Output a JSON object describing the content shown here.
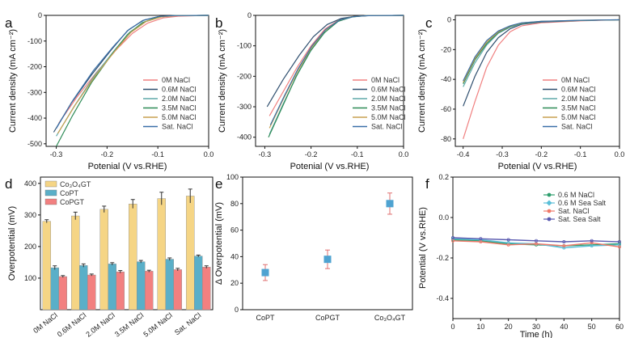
{
  "chart_data": [
    {
      "panel": "a",
      "type": "line",
      "xlabel": "Potenial (V vs.RHE)",
      "ylabel": "Current density (mA cm⁻²)",
      "xlim": [
        -0.32,
        0.0
      ],
      "ylim": [
        -510,
        0
      ],
      "xticks": [
        "-0.3",
        "-0.2",
        "-0.1",
        "0.0"
      ],
      "yticks": [
        "0",
        "-100",
        "-200",
        "-300",
        "-400",
        "-500"
      ],
      "series": [
        {
          "name": "0M NaCl",
          "color": "#f08080",
          "points": [
            [
              -0.295,
              -420
            ],
            [
              -0.26,
              -320
            ],
            [
              -0.22,
              -220
            ],
            [
              -0.18,
              -130
            ],
            [
              -0.15,
              -70
            ],
            [
              -0.12,
              -30
            ],
            [
              -0.09,
              -10
            ],
            [
              -0.06,
              -3
            ],
            [
              0,
              0
            ]
          ]
        },
        {
          "name": "0.6M NaCl",
          "color": "#2f4f6f",
          "points": [
            [
              -0.305,
              -455
            ],
            [
              -0.27,
              -340
            ],
            [
              -0.23,
              -230
            ],
            [
              -0.19,
              -130
            ],
            [
              -0.16,
              -60
            ],
            [
              -0.13,
              -20
            ],
            [
              -0.1,
              -5
            ],
            [
              -0.07,
              -1
            ],
            [
              0,
              0
            ]
          ]
        },
        {
          "name": "2.0M NaCl",
          "color": "#5ea8a8",
          "points": [
            [
              -0.3,
              -470
            ],
            [
              -0.265,
              -355
            ],
            [
              -0.225,
              -235
            ],
            [
              -0.185,
              -135
            ],
            [
              -0.155,
              -65
            ],
            [
              -0.125,
              -25
            ],
            [
              -0.095,
              -6
            ],
            [
              -0.065,
              -1
            ],
            [
              0,
              0
            ]
          ]
        },
        {
          "name": "3.5M NaCl",
          "color": "#2e8b57",
          "points": [
            [
              -0.3,
              -510
            ],
            [
              -0.268,
              -390
            ],
            [
              -0.23,
              -260
            ],
            [
              -0.19,
              -150
            ],
            [
              -0.16,
              -75
            ],
            [
              -0.13,
              -28
            ],
            [
              -0.1,
              -7
            ],
            [
              -0.07,
              -1
            ],
            [
              0,
              0
            ]
          ]
        },
        {
          "name": "5.0M NaCl",
          "color": "#c8a050",
          "points": [
            [
              -0.297,
              -460
            ],
            [
              -0.263,
              -350
            ],
            [
              -0.223,
              -235
            ],
            [
              -0.183,
              -135
            ],
            [
              -0.153,
              -66
            ],
            [
              -0.123,
              -24
            ],
            [
              -0.093,
              -6
            ],
            [
              -0.063,
              -1
            ],
            [
              0,
              0
            ]
          ]
        },
        {
          "name": "Sat. NaCl",
          "color": "#3a6fa8",
          "points": [
            [
              -0.3,
              -440
            ],
            [
              -0.267,
              -330
            ],
            [
              -0.227,
              -215
            ],
            [
              -0.187,
              -120
            ],
            [
              -0.157,
              -55
            ],
            [
              -0.127,
              -18
            ],
            [
              -0.097,
              -4
            ],
            [
              -0.067,
              -1
            ],
            [
              0,
              0
            ]
          ]
        }
      ]
    },
    {
      "panel": "b",
      "type": "line",
      "xlabel": "Potenial (V vs.RHE)",
      "ylabel": "Current density (mA cm⁻²)",
      "xlim": [
        -0.32,
        0.0
      ],
      "ylim": [
        -430,
        0
      ],
      "xticks": [
        "-0.3",
        "-0.2",
        "-0.1",
        "0.0"
      ],
      "yticks": [
        "0",
        "-100",
        "-200",
        "-300",
        "-400"
      ],
      "series": [
        {
          "name": "0M NaCl",
          "color": "#f08080",
          "points": [
            [
              -0.29,
              -330
            ],
            [
              -0.26,
              -250
            ],
            [
              -0.23,
              -170
            ],
            [
              -0.2,
              -100
            ],
            [
              -0.17,
              -45
            ],
            [
              -0.14,
              -15
            ],
            [
              -0.11,
              -4
            ],
            [
              -0.08,
              -1
            ],
            [
              0,
              0
            ]
          ]
        },
        {
          "name": "0.6M NaCl",
          "color": "#2f4f6f",
          "points": [
            [
              -0.295,
              -300
            ],
            [
              -0.26,
              -210
            ],
            [
              -0.225,
              -130
            ],
            [
              -0.195,
              -70
            ],
            [
              -0.165,
              -30
            ],
            [
              -0.135,
              -10
            ],
            [
              -0.105,
              -3
            ],
            [
              -0.075,
              -1
            ],
            [
              0,
              0
            ]
          ]
        },
        {
          "name": "2.0M NaCl",
          "color": "#5ea8a8",
          "points": [
            [
              -0.29,
              -390
            ],
            [
              -0.26,
              -290
            ],
            [
              -0.23,
              -195
            ],
            [
              -0.2,
              -115
            ],
            [
              -0.17,
              -55
            ],
            [
              -0.14,
              -18
            ],
            [
              -0.11,
              -5
            ],
            [
              -0.08,
              -1
            ],
            [
              0,
              0
            ]
          ]
        },
        {
          "name": "3.5M NaCl",
          "color": "#2e8b57",
          "points": [
            [
              -0.292,
              -400
            ],
            [
              -0.262,
              -300
            ],
            [
              -0.232,
              -200
            ],
            [
              -0.202,
              -118
            ],
            [
              -0.172,
              -58
            ],
            [
              -0.142,
              -20
            ],
            [
              -0.112,
              -5
            ],
            [
              -0.082,
              -1
            ],
            [
              0,
              0
            ]
          ]
        },
        {
          "name": "5.0M NaCl",
          "color": "#c8a050",
          "points": [
            [
              -0.29,
              -370
            ],
            [
              -0.26,
              -275
            ],
            [
              -0.23,
              -185
            ],
            [
              -0.2,
              -108
            ],
            [
              -0.17,
              -50
            ],
            [
              -0.14,
              -16
            ],
            [
              -0.11,
              -4
            ],
            [
              -0.08,
              -1
            ],
            [
              0,
              0
            ]
          ]
        },
        {
          "name": "Sat. NaCl",
          "color": "#3a6fa8",
          "points": [
            [
              -0.288,
              -360
            ],
            [
              -0.258,
              -265
            ],
            [
              -0.228,
              -175
            ],
            [
              -0.198,
              -100
            ],
            [
              -0.168,
              -46
            ],
            [
              -0.138,
              -15
            ],
            [
              -0.108,
              -4
            ],
            [
              -0.078,
              -1
            ],
            [
              0,
              0
            ]
          ]
        }
      ]
    },
    {
      "panel": "c",
      "type": "line",
      "xlabel": "Potenial (V vs.RHE)",
      "ylabel": "Current density (mA cm⁻²)",
      "xlim": [
        -0.42,
        0.0
      ],
      "ylim": [
        -85,
        3
      ],
      "xticks": [
        "-0.4",
        "-0.3",
        "-0.2",
        "-0.1",
        "0.0"
      ],
      "yticks": [
        "0",
        "-20",
        "-40",
        "-60",
        "-80"
      ],
      "series": [
        {
          "name": "0M NaCl",
          "color": "#f08080",
          "points": [
            [
              -0.4,
              -80
            ],
            [
              -0.37,
              -55
            ],
            [
              -0.34,
              -32
            ],
            [
              -0.31,
              -17
            ],
            [
              -0.28,
              -8
            ],
            [
              -0.25,
              -4
            ],
            [
              -0.2,
              -2
            ],
            [
              -0.1,
              -0.7
            ],
            [
              0,
              0
            ]
          ]
        },
        {
          "name": "0.6M NaCl",
          "color": "#2f4f6f",
          "points": [
            [
              -0.4,
              -58
            ],
            [
              -0.37,
              -38
            ],
            [
              -0.34,
              -22
            ],
            [
              -0.31,
              -12
            ],
            [
              -0.28,
              -6
            ],
            [
              -0.25,
              -3
            ],
            [
              -0.2,
              -1.5
            ],
            [
              -0.1,
              -0.5
            ],
            [
              0,
              0
            ]
          ]
        },
        {
          "name": "2.0M NaCl",
          "color": "#5ea8a8",
          "points": [
            [
              -0.4,
              -45
            ],
            [
              -0.37,
              -29
            ],
            [
              -0.34,
              -17
            ],
            [
              -0.31,
              -9
            ],
            [
              -0.28,
              -5
            ],
            [
              -0.25,
              -2.5
            ],
            [
              -0.2,
              -1.2
            ],
            [
              -0.1,
              -0.4
            ],
            [
              0,
              0
            ]
          ]
        },
        {
          "name": "3.5M NaCl",
          "color": "#2e8b57",
          "points": [
            [
              -0.4,
              -43
            ],
            [
              -0.37,
              -27
            ],
            [
              -0.34,
              -16
            ],
            [
              -0.31,
              -8.5
            ],
            [
              -0.28,
              -4.5
            ],
            [
              -0.25,
              -2.3
            ],
            [
              -0.2,
              -1.1
            ],
            [
              -0.1,
              -0.4
            ],
            [
              0,
              0
            ]
          ]
        },
        {
          "name": "5.0M NaCl",
          "color": "#c8a050",
          "points": [
            [
              -0.4,
              -42
            ],
            [
              -0.37,
              -26
            ],
            [
              -0.34,
              -15
            ],
            [
              -0.31,
              -8
            ],
            [
              -0.28,
              -4.2
            ],
            [
              -0.25,
              -2.1
            ],
            [
              -0.2,
              -1
            ],
            [
              -0.1,
              -0.3
            ],
            [
              0,
              0
            ]
          ]
        },
        {
          "name": "Sat. NaCl",
          "color": "#3a6fa8",
          "points": [
            [
              -0.4,
              -41
            ],
            [
              -0.37,
              -25
            ],
            [
              -0.34,
              -14
            ],
            [
              -0.31,
              -7.5
            ],
            [
              -0.28,
              -4
            ],
            [
              -0.25,
              -2
            ],
            [
              -0.2,
              -1
            ],
            [
              -0.1,
              -0.3
            ],
            [
              0,
              0
            ]
          ]
        }
      ]
    },
    {
      "panel": "d",
      "type": "bar",
      "ylabel": "Overpotential (mV)",
      "ylim": [
        0,
        420
      ],
      "yticks": [
        "100",
        "200",
        "300",
        "400"
      ],
      "categories": [
        "0M NaCl",
        "0.6M NaCl",
        "2.0M NaCl",
        "3.5M NaCl",
        "5.0M NaCl",
        "Sat. NaCl"
      ],
      "series": [
        {
          "name": "Co₃O₄GT",
          "color": "#f5d585",
          "values": [
            280,
            297,
            318,
            335,
            352,
            360
          ],
          "errors": [
            5,
            12,
            10,
            14,
            20,
            22
          ]
        },
        {
          "name": "CoPT",
          "color": "#5aafc8",
          "values": [
            133,
            140,
            145,
            152,
            160,
            170
          ],
          "errors": [
            6,
            5,
            4,
            4,
            4,
            3
          ]
        },
        {
          "name": "CoPGT",
          "color": "#f28080",
          "values": [
            105,
            110,
            120,
            122,
            127,
            135
          ],
          "errors": [
            3,
            3,
            4,
            3,
            4,
            4
          ]
        }
      ]
    },
    {
      "panel": "e",
      "type": "scatter",
      "ylabel": "Δ Overpotential (mV)",
      "ylim": [
        0,
        100
      ],
      "yticks": [
        "0",
        "20",
        "40",
        "60",
        "80",
        "100"
      ],
      "categories": [
        "CoPT",
        "CoPGT",
        "Co₃O₄GT"
      ],
      "values": [
        28,
        38,
        80
      ],
      "errors": [
        6,
        7,
        8
      ],
      "marker_color": "#4fa3d1",
      "error_color": "#e07070"
    },
    {
      "panel": "f",
      "type": "line",
      "xlabel": "Time (h)",
      "ylabel": "Potential (V vs.RHE)",
      "xlim": [
        0,
        60
      ],
      "ylim": [
        -0.5,
        0.2
      ],
      "xticks": [
        "0",
        "10",
        "20",
        "30",
        "40",
        "50",
        "60"
      ],
      "yticks": [
        "0.2",
        "0.0",
        "-0.2",
        "-0.4"
      ],
      "series": [
        {
          "name": "0.6 M NaCl",
          "color": "#2e9e6e",
          "marker": "circle",
          "points": [
            [
              0,
              -0.11
            ],
            [
              10,
              -0.115
            ],
            [
              20,
              -0.13
            ],
            [
              30,
              -0.135
            ],
            [
              40,
              -0.14
            ],
            [
              50,
              -0.135
            ],
            [
              60,
              -0.13
            ]
          ]
        },
        {
          "name": "0.6 M Sea Salt",
          "color": "#5abfd8",
          "marker": "diamond",
          "points": [
            [
              0,
              -0.105
            ],
            [
              10,
              -0.11
            ],
            [
              20,
              -0.125
            ],
            [
              30,
              -0.13
            ],
            [
              40,
              -0.15
            ],
            [
              50,
              -0.14
            ],
            [
              60,
              -0.135
            ]
          ]
        },
        {
          "name": "Sat. NaCl",
          "color": "#f07a6a",
          "marker": "circle",
          "points": [
            [
              0,
              -0.115
            ],
            [
              10,
              -0.12
            ],
            [
              20,
              -0.135
            ],
            [
              30,
              -0.13
            ],
            [
              40,
              -0.14
            ],
            [
              50,
              -0.125
            ],
            [
              60,
              -0.145
            ]
          ]
        },
        {
          "name": "Sat. Sea Salt",
          "color": "#5a5ab0",
          "marker": "circle",
          "points": [
            [
              0,
              -0.1
            ],
            [
              10,
              -0.105
            ],
            [
              20,
              -0.11
            ],
            [
              30,
              -0.115
            ],
            [
              40,
              -0.12
            ],
            [
              50,
              -0.115
            ],
            [
              60,
              -0.12
            ]
          ]
        }
      ]
    }
  ]
}
